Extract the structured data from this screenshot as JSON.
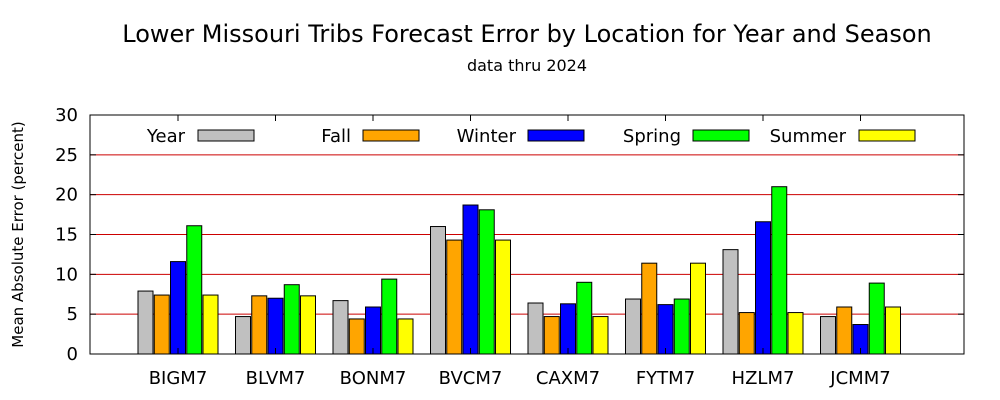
{
  "chart_data": {
    "type": "bar",
    "title": "Lower Missouri Tribs Forecast Error by Location for Year and Season",
    "subtitle": "data thru 2024",
    "xlabel": "",
    "ylabel": "Mean Absolute Error (percent)",
    "ylim": [
      0,
      30
    ],
    "yticks": [
      0,
      5,
      10,
      15,
      20,
      25,
      30
    ],
    "grid": "horizontal",
    "legend_position": "top",
    "categories": [
      "BIGM7",
      "BLVM7",
      "BONM7",
      "BVCM7",
      "CAXM7",
      "FYTM7",
      "HZLM7",
      "JCMM7"
    ],
    "series": [
      {
        "name": "Year",
        "color": "#c0c0c0",
        "values": [
          7.9,
          4.7,
          6.7,
          16.0,
          6.4,
          6.9,
          13.1,
          4.7
        ]
      },
      {
        "name": "Fall",
        "color": "#ffa500",
        "values": [
          7.4,
          7.3,
          4.4,
          14.3,
          4.7,
          11.4,
          5.2,
          5.9
        ]
      },
      {
        "name": "Winter",
        "color": "#0000ff",
        "values": [
          11.6,
          7.0,
          5.9,
          18.7,
          6.3,
          6.2,
          16.6,
          3.7
        ]
      },
      {
        "name": "Spring",
        "color": "#00ff00",
        "values": [
          16.1,
          8.7,
          9.4,
          18.1,
          9.0,
          6.9,
          21.0,
          8.9
        ]
      },
      {
        "name": "Summer",
        "color": "#ffff00",
        "values": [
          7.4,
          7.3,
          4.4,
          14.3,
          4.7,
          11.4,
          5.2,
          5.9
        ]
      }
    ],
    "colors": {
      "gridline": "#cc0000",
      "bar_outline": "#000000",
      "axis": "#000000"
    }
  }
}
